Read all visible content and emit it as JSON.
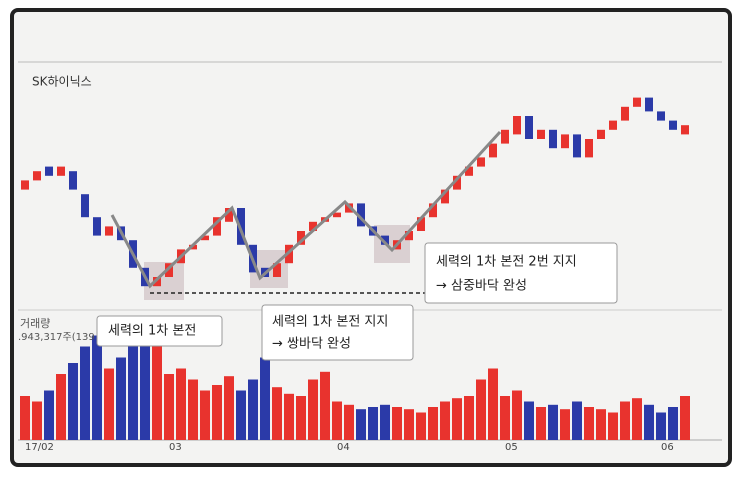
{
  "chart_data": {
    "type": "candlestick",
    "title": "SK하이닉스",
    "volume_label": "거래량",
    "volume_info": ".943,317주(139",
    "categories": [
      "17/02",
      null,
      null,
      null,
      null,
      null,
      null,
      null,
      null,
      null,
      null,
      null,
      "03",
      null,
      null,
      null,
      null,
      null,
      null,
      null,
      null,
      null,
      null,
      null,
      null,
      null,
      "04",
      null,
      null,
      null,
      null,
      null,
      null,
      null,
      null,
      null,
      null,
      null,
      null,
      null,
      "05",
      null,
      null,
      null,
      null,
      null,
      null,
      null,
      null,
      null,
      null,
      null,
      null,
      "06",
      null,
      null
    ],
    "open": [
      48,
      52,
      58,
      54,
      56,
      46,
      36,
      28,
      32,
      26,
      14,
      6,
      10,
      16,
      22,
      26,
      28,
      34,
      40,
      24,
      14,
      10,
      16,
      24,
      30,
      34,
      36,
      38,
      42,
      32,
      28,
      22,
      26,
      30,
      36,
      42,
      48,
      54,
      58,
      62,
      68,
      72,
      80,
      70,
      74,
      66,
      72,
      62,
      70,
      74,
      78,
      84,
      88,
      82,
      78,
      72
    ],
    "close": [
      52,
      56,
      54,
      58,
      48,
      36,
      28,
      32,
      26,
      14,
      6,
      10,
      16,
      22,
      24,
      28,
      36,
      40,
      24,
      12,
      10,
      16,
      24,
      30,
      34,
      36,
      38,
      42,
      32,
      28,
      24,
      26,
      30,
      36,
      42,
      48,
      54,
      58,
      62,
      68,
      74,
      80,
      70,
      74,
      66,
      72,
      62,
      70,
      74,
      78,
      84,
      88,
      82,
      78,
      74,
      76
    ],
    "volume": [
      40,
      35,
      45,
      60,
      70,
      85,
      95,
      65,
      75,
      90,
      100,
      90,
      60,
      65,
      55,
      45,
      50,
      58,
      45,
      55,
      75,
      48,
      42,
      40,
      55,
      62,
      35,
      32,
      28,
      30,
      32,
      30,
      28,
      25,
      30,
      35,
      38,
      40,
      55,
      65,
      40,
      45,
      35,
      30,
      32,
      28,
      35,
      30,
      28,
      25,
      35,
      38,
      32,
      25,
      30,
      40
    ],
    "up_color": "#e8332e",
    "down_color": "#2b3aa8",
    "ylim": [
      0,
      100
    ],
    "volume_lim": [
      0,
      100
    ],
    "annotations": [
      [
        "세력의 1차 본전"
      ],
      [
        "세력의 1차 본전 지지",
        "→ 쌍바닥 완성"
      ],
      [
        "세력의 1차 본전 2번 지지",
        "→ 삼중바닥 완성"
      ]
    ]
  }
}
